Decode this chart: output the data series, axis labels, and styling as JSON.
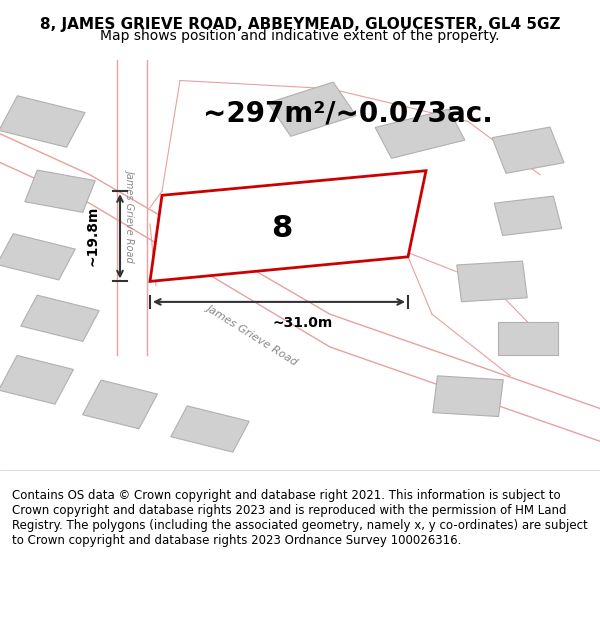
{
  "title_line1": "8, JAMES GRIEVE ROAD, ABBEYMEAD, GLOUCESTER, GL4 5GZ",
  "title_line2": "Map shows position and indicative extent of the property.",
  "area_text": "~297m²/~0.073ac.",
  "plot_number": "8",
  "dim_width": "~31.0m",
  "dim_height": "~19.8m",
  "footer_text": "Contains OS data © Crown copyright and database right 2021. This information is subject to Crown copyright and database rights 2023 and is reproduced with the permission of HM Land Registry. The polygons (including the associated geometry, namely x, y co-ordinates) are subject to Crown copyright and database rights 2023 Ordnance Survey 100026316.",
  "bg_color": "#f0f0f0",
  "map_bg": "#e8e8e8",
  "road_color": "#ffffff",
  "road_outline": "#e8a0a0",
  "plot_fill": "#ffffff",
  "plot_edge": "#cc0000",
  "building_fill": "#d0d0d0",
  "building_edge": "#aaaaaa",
  "dim_line_color": "#333333",
  "title_fontsize": 11,
  "subtitle_fontsize": 10,
  "area_fontsize": 20,
  "plot_label_fontsize": 22,
  "footer_fontsize": 8.5
}
